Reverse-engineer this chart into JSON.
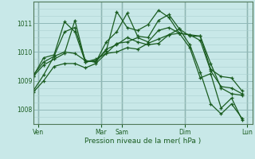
{
  "background_color": "#c8e8e8",
  "grid_major_color": "#90b8b8",
  "grid_minor_color": "#aad0d0",
  "line_color": "#1a5c20",
  "xlabel": "Pression niveau de la mer( hPa )",
  "ylim": [
    1007.5,
    1011.75
  ],
  "yticks": [
    1008,
    1009,
    1010,
    1011
  ],
  "xlim": [
    0,
    126
  ],
  "day_positions": [
    3,
    39,
    51,
    87,
    123
  ],
  "day_labels": [
    "Ven",
    "Mar",
    "Sam",
    "Dim",
    "Lun"
  ],
  "lines": [
    [
      0,
      1008.65,
      6,
      1009.2,
      12,
      1009.85,
      18,
      1010.7,
      24,
      1010.85,
      30,
      1009.7,
      36,
      1009.65,
      42,
      1010.35,
      48,
      1010.7,
      54,
      1011.35,
      60,
      1010.55,
      66,
      1010.5,
      72,
      1011.1,
      78,
      1011.3,
      84,
      1010.8,
      90,
      1010.25,
      96,
      1009.3,
      102,
      1008.2,
      108,
      1007.85,
      114,
      1008.2,
      120,
      1007.7
    ],
    [
      0,
      1009.15,
      6,
      1009.8,
      12,
      1009.9,
      18,
      1011.05,
      24,
      1010.7,
      30,
      1009.65,
      36,
      1009.7,
      42,
      1010.05,
      48,
      1011.4,
      54,
      1010.85,
      60,
      1010.75,
      66,
      1010.95,
      72,
      1011.45,
      78,
      1011.2,
      84,
      1010.65,
      90,
      1010.15,
      96,
      1009.1,
      102,
      1009.25,
      108,
      1008.05,
      114,
      1008.4,
      120,
      1007.65
    ],
    [
      0,
      1009.2,
      6,
      1009.65,
      12,
      1009.85,
      18,
      1010.0,
      24,
      1009.95,
      30,
      1009.7,
      36,
      1009.65,
      42,
      1010.1,
      48,
      1010.25,
      54,
      1010.5,
      60,
      1010.35,
      66,
      1010.25,
      72,
      1010.3,
      78,
      1010.6,
      84,
      1010.65,
      90,
      1010.6,
      96,
      1010.55,
      102,
      1009.6,
      108,
      1008.75,
      114,
      1008.55,
      120,
      1008.5
    ],
    [
      0,
      1009.15,
      6,
      1009.55,
      12,
      1009.75,
      18,
      1009.95,
      24,
      1011.1,
      30,
      1009.65,
      36,
      1009.75,
      42,
      1009.95,
      48,
      1010.3,
      54,
      1010.35,
      60,
      1010.5,
      66,
      1010.35,
      72,
      1010.75,
      78,
      1010.85,
      84,
      1010.65,
      90,
      1010.6,
      96,
      1010.4,
      102,
      1009.35,
      108,
      1008.8,
      114,
      1008.75,
      120,
      1008.55
    ],
    [
      0,
      1008.6,
      6,
      1009.0,
      12,
      1009.5,
      18,
      1009.6,
      24,
      1009.6,
      30,
      1009.45,
      36,
      1009.6,
      42,
      1009.95,
      48,
      1010.0,
      54,
      1010.15,
      60,
      1010.1,
      66,
      1010.3,
      72,
      1010.45,
      78,
      1010.6,
      84,
      1010.8,
      90,
      1010.55,
      96,
      1010.55,
      102,
      1009.4,
      108,
      1009.15,
      114,
      1009.1,
      120,
      1008.65
    ]
  ]
}
